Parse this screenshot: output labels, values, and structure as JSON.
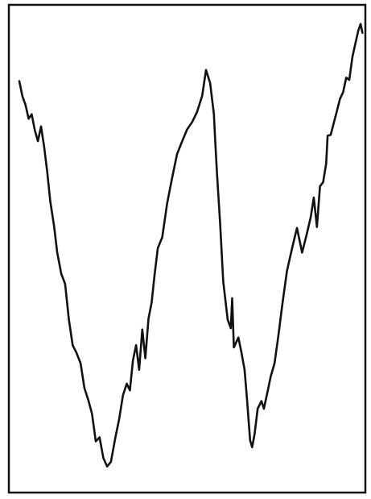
{
  "chart_data": {
    "type": "line",
    "title": "",
    "xlabel": "",
    "ylabel": "",
    "grid": false,
    "legend": "none",
    "xlim": [
      0,
      100
    ],
    "ylim": [
      0,
      100
    ],
    "colors": {
      "line": "#111111",
      "frame": "#111111",
      "background": "#ffffff"
    },
    "series": [
      {
        "x": [
          0.0,
          0.9,
          1.8,
          2.7,
          3.6,
          4.5,
          5.4,
          6.3,
          7.2,
          8.1,
          9.0,
          10.1,
          11.0,
          12.2,
          13.3,
          14.4,
          15.5,
          16.6,
          17.8,
          18.9,
          20.0,
          21.1,
          22.2,
          23.3,
          24.4,
          25.5,
          26.6,
          27.9,
          29.0,
          30.1,
          31.2,
          32.1,
          33.0,
          33.9,
          34.8,
          35.7,
          36.6,
          37.5,
          38.4,
          39.3,
          40.2,
          41.5,
          42.9,
          44.4,
          45.8,
          47.3,
          48.7,
          50.2,
          51.6,
          53.1,
          54.2,
          55.4,
          56.5,
          56.9,
          57.4,
          58.3,
          59.2,
          60.5,
          61.4,
          61.8,
          62.3,
          63.6,
          64.5,
          65.4,
          66.1,
          67.0,
          67.6,
          68.3,
          69.2,
          70.3,
          71.0,
          72.1,
          73.0,
          74.1,
          75.2,
          76.3,
          77.7,
          79.2,
          80.6,
          82.1,
          83.5,
          84.6,
          85.5,
          86.4,
          87.3,
          88.2,
          89.1,
          89.5,
          90.4,
          91.3,
          92.2,
          93.1,
          94.0,
          94.9,
          95.8,
          96.7,
          97.6,
          98.4,
          99.1,
          99.6
        ],
        "y": [
          88.7,
          85.3,
          83.4,
          80.3,
          81.3,
          77.7,
          75.3,
          78.6,
          74.1,
          68.4,
          61.8,
          56.3,
          50.4,
          45.6,
          43.4,
          35.4,
          29.7,
          28.0,
          25.6,
          20.1,
          17.5,
          14.4,
          8.2,
          9.1,
          4.5,
          2.6,
          3.6,
          9.1,
          13.2,
          18.5,
          21.1,
          19.6,
          26.3,
          29.7,
          24.2,
          33.2,
          26.8,
          35.6,
          39.2,
          45.6,
          51.4,
          53.8,
          61.3,
          67.2,
          72.4,
          75.3,
          77.9,
          79.6,
          81.8,
          85.5,
          91.2,
          88.3,
          81.3,
          75.1,
          67.9,
          57.0,
          43.9,
          35.4,
          33.5,
          40.2,
          29.2,
          31.4,
          28.0,
          24.2,
          17.7,
          8.4,
          6.9,
          9.8,
          15.5,
          17.2,
          15.5,
          19.4,
          22.7,
          25.6,
          31.8,
          38.5,
          46.3,
          51.4,
          55.9,
          50.4,
          54.7,
          58.3,
          62.7,
          56.1,
          65.2,
          66.1,
          70.3,
          76.5,
          76.7,
          79.4,
          82.0,
          84.8,
          86.2,
          89.5,
          89.0,
          94.1,
          97.2,
          100.0,
          101.5,
          99.5
        ]
      }
    ]
  }
}
